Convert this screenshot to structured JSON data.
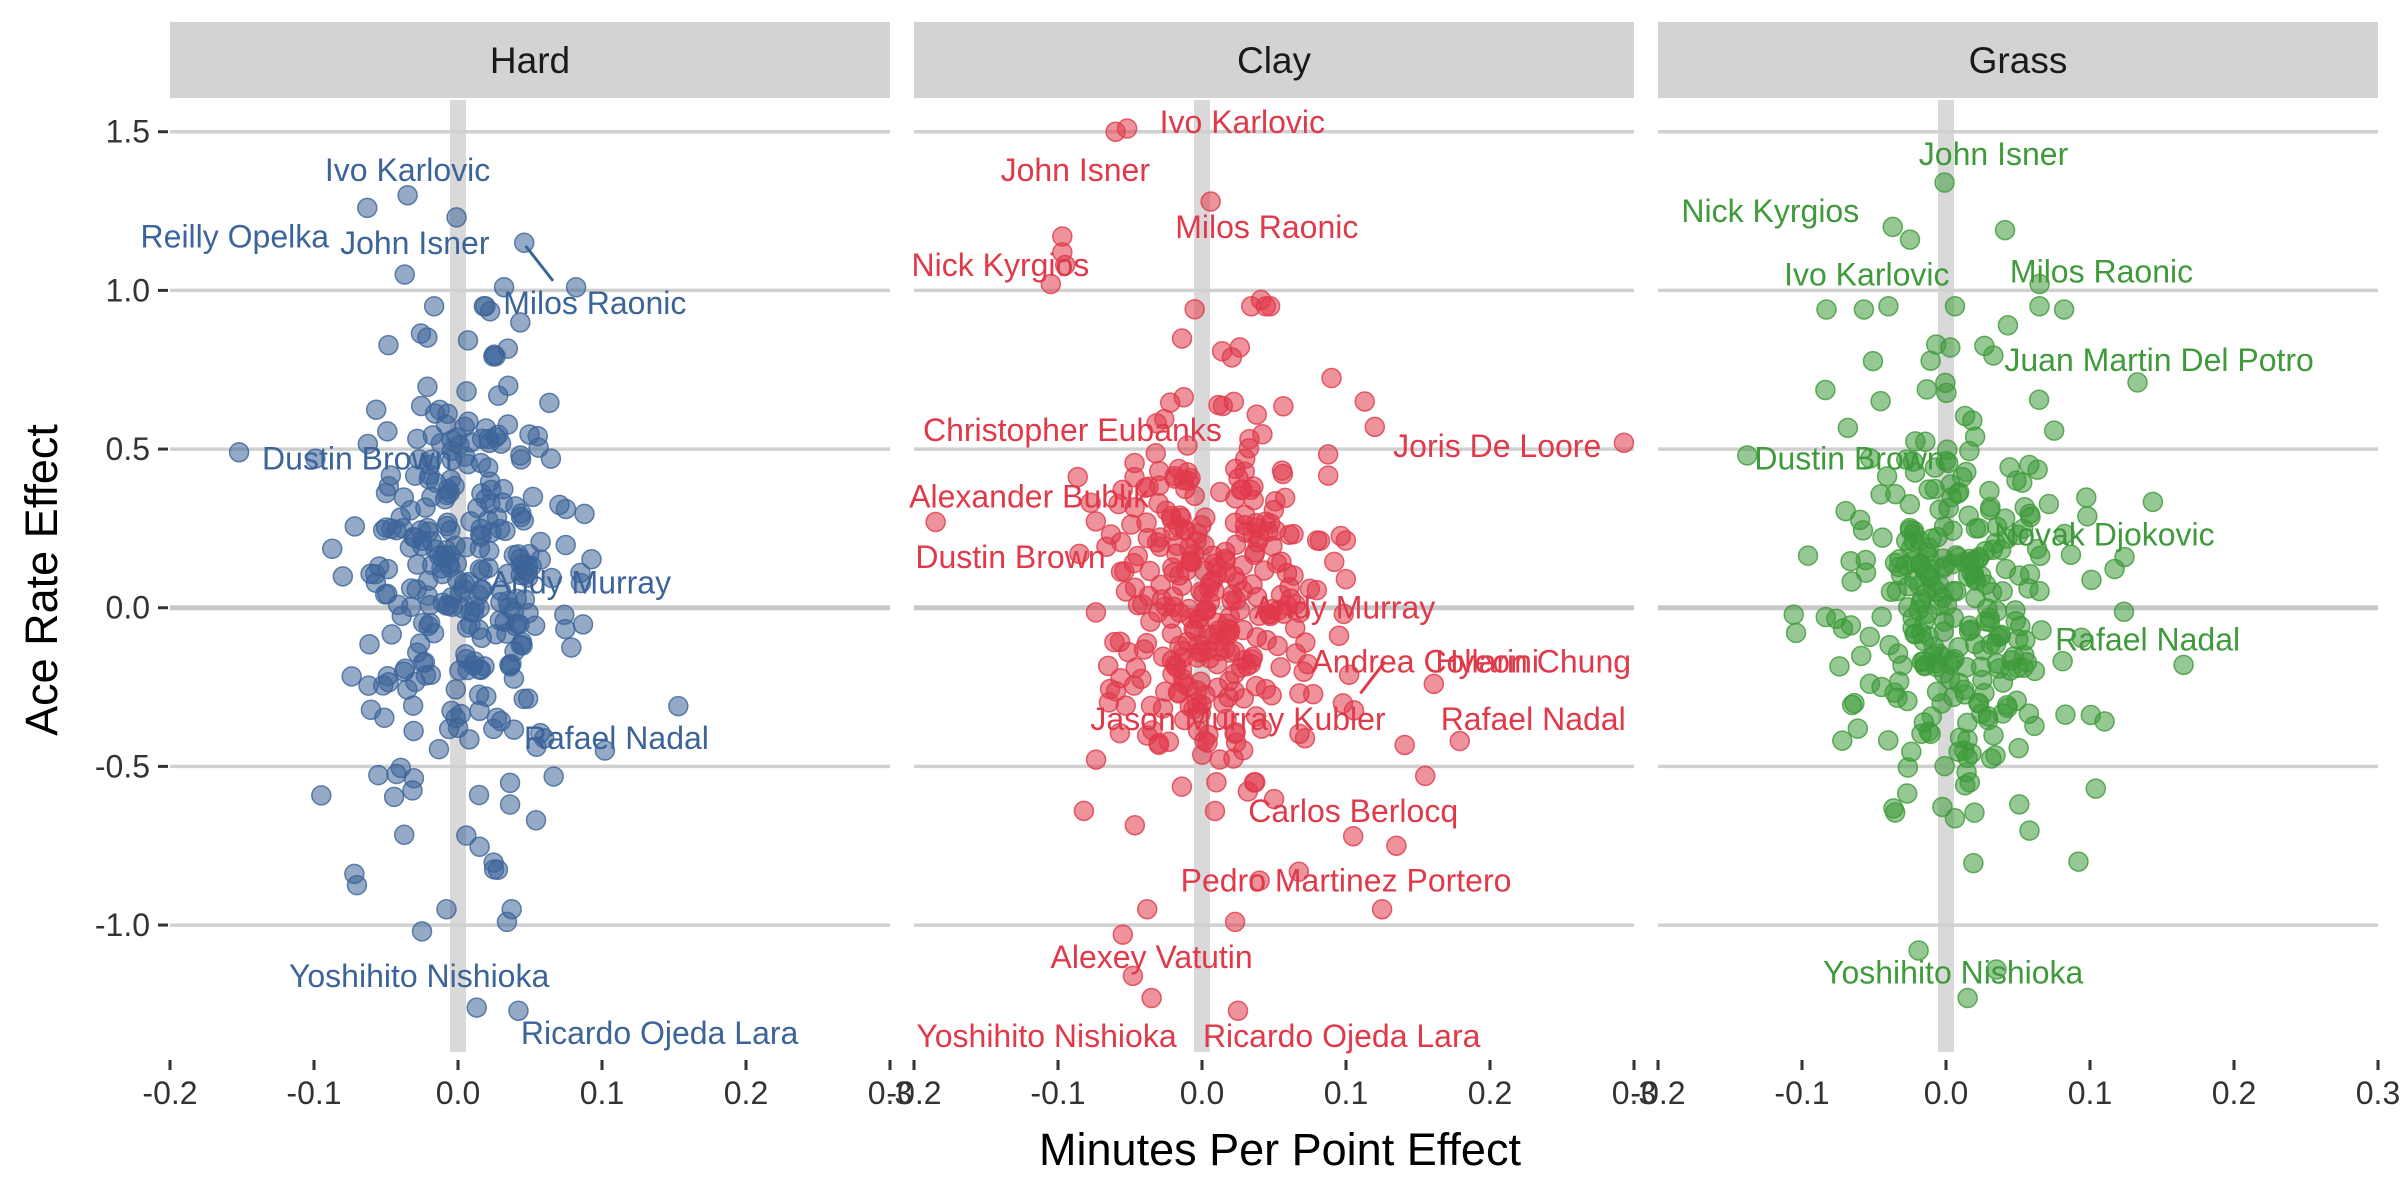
{
  "chart_data": {
    "type": "scatter",
    "xlabel": "Minutes Per Point Effect",
    "ylabel": "Ace Rate Effect",
    "xlim": [
      -0.2,
      0.3
    ],
    "ylim": [
      -1.4,
      1.6
    ],
    "x_ticks": [
      "-0.2",
      "-0.1",
      "0.0",
      "0.1",
      "0.2",
      "0.3"
    ],
    "y_ticks": [
      "1.5",
      "1.0",
      "0.5",
      "0.0",
      "-0.5",
      "-1.0"
    ],
    "grid": true,
    "panels": [
      {
        "surface": "Hard",
        "color": "#3c6499",
        "point_opacity": 0.55,
        "labels": [
          {
            "text": "Ivo Karlovic",
            "x": -0.035,
            "y": 1.38
          },
          {
            "text": "Reilly Opelka",
            "x": -0.155,
            "y": 1.17
          },
          {
            "text": "John Isner",
            "x": -0.03,
            "y": 1.15
          },
          {
            "text": "Milos Raonic",
            "x": 0.095,
            "y": 0.96
          },
          {
            "text": "Dustin Brown",
            "x": -0.07,
            "y": 0.47
          },
          {
            "text": "Andy Murray",
            "x": 0.085,
            "y": 0.08
          },
          {
            "text": "Rafael Nadal",
            "x": 0.11,
            "y": -0.41
          },
          {
            "text": "Yoshihito Nishioka",
            "x": -0.027,
            "y": -1.16
          },
          {
            "text": "Ricardo Ojeda Lara",
            "x": 0.14,
            "y": -1.34
          }
        ],
        "highlight_points": [
          [
            -0.035,
            1.3
          ],
          [
            -0.063,
            1.26
          ],
          [
            -0.001,
            1.23
          ],
          [
            -0.037,
            1.05
          ],
          [
            0.046,
            1.15
          ],
          [
            0.032,
            1.01
          ],
          [
            0.082,
            1.01
          ],
          [
            -0.152,
            0.49
          ],
          [
            -0.099,
            0.47
          ],
          [
            0.085,
            0.11
          ],
          [
            0.102,
            -0.45
          ],
          [
            0.153,
            -0.31
          ],
          [
            0.013,
            -1.26
          ],
          [
            0.042,
            -1.27
          ],
          [
            -0.025,
            -1.02
          ],
          [
            0.034,
            -0.99
          ],
          [
            -0.008,
            -0.95
          ]
        ],
        "leaders": [
          [
            0.047,
            1.14,
            0.066,
            1.03
          ]
        ]
      },
      {
        "surface": "Clay",
        "color": "#e0394a",
        "point_opacity": 0.55,
        "labels": [
          {
            "text": "Ivo Karlovic",
            "x": 0.028,
            "y": 1.53
          },
          {
            "text": "John Isner",
            "x": -0.088,
            "y": 1.38
          },
          {
            "text": "Milos Raonic",
            "x": 0.045,
            "y": 1.2
          },
          {
            "text": "Nick Kyrgios",
            "x": -0.14,
            "y": 1.08
          },
          {
            "text": "Christopher Eubanks",
            "x": -0.09,
            "y": 0.56
          },
          {
            "text": "Joris De Loore",
            "x": 0.205,
            "y": 0.51
          },
          {
            "text": "Alexander Bublik",
            "x": -0.12,
            "y": 0.35
          },
          {
            "text": "Dustin Brown",
            "x": -0.133,
            "y": 0.16
          },
          {
            "text": "Andy Murray",
            "x": 0.099,
            "y": 0.0
          },
          {
            "text": "Andrea Collarini",
            "x": 0.155,
            "y": -0.17
          },
          {
            "text": "Hyeon Chung",
            "x": 0.23,
            "y": -0.17
          },
          {
            "text": "Jason Murray Kubler",
            "x": 0.025,
            "y": -0.35
          },
          {
            "text": "Rafael Nadal",
            "x": 0.23,
            "y": -0.35
          },
          {
            "text": "Carlos Berlocq",
            "x": 0.105,
            "y": -0.64
          },
          {
            "text": "Pedro Martinez Portero",
            "x": 0.1,
            "y": -0.86
          },
          {
            "text": "Alexey Vatutin",
            "x": -0.035,
            "y": -1.1
          },
          {
            "text": "Yoshihito Nishioka",
            "x": -0.108,
            "y": -1.35
          },
          {
            "text": "Ricardo Ojeda Lara",
            "x": 0.097,
            "y": -1.35
          }
        ],
        "highlight_points": [
          [
            -0.06,
            1.5
          ],
          [
            -0.052,
            1.51
          ],
          [
            0.006,
            1.28
          ],
          [
            -0.097,
            1.17
          ],
          [
            -0.097,
            1.12
          ],
          [
            -0.095,
            1.08
          ],
          [
            -0.105,
            1.02
          ],
          [
            0.041,
            0.97
          ],
          [
            0.113,
            0.65
          ],
          [
            0.12,
            0.57
          ],
          [
            0.293,
            0.52
          ],
          [
            -0.185,
            0.27
          ],
          [
            0.161,
            -0.24
          ],
          [
            0.179,
            -0.42
          ],
          [
            0.155,
            -0.53
          ],
          [
            0.135,
            -0.75
          ],
          [
            0.105,
            -0.72
          ],
          [
            0.023,
            -0.99
          ],
          [
            -0.055,
            -1.03
          ],
          [
            -0.048,
            -1.16
          ],
          [
            -0.035,
            -1.23
          ],
          [
            0.025,
            -1.27
          ],
          [
            -0.082,
            -0.64
          ],
          [
            0.037,
            -0.55
          ],
          [
            0.04,
            -0.86
          ]
        ],
        "leaders": [
          [
            0.127,
            -0.17,
            0.11,
            -0.27
          ]
        ]
      },
      {
        "surface": "Grass",
        "color": "#3e9a3a",
        "point_opacity": 0.55,
        "labels": [
          {
            "text": "John Isner",
            "x": 0.033,
            "y": 1.43
          },
          {
            "text": "Nick Kyrgios",
            "x": -0.122,
            "y": 1.25
          },
          {
            "text": "Milos Raonic",
            "x": 0.108,
            "y": 1.06
          },
          {
            "text": "Ivo Karlovic",
            "x": -0.055,
            "y": 1.05
          },
          {
            "text": "Juan Martin Del Potro",
            "x": 0.148,
            "y": 0.78
          },
          {
            "text": "Dustin Brown",
            "x": -0.067,
            "y": 0.47
          },
          {
            "text": "Novak Djokovic",
            "x": 0.11,
            "y": 0.23
          },
          {
            "text": "Rafael Nadal",
            "x": 0.14,
            "y": -0.1
          },
          {
            "text": "Yoshihito Nishioka",
            "x": 0.005,
            "y": -1.15
          }
        ],
        "highlight_points": [
          [
            -0.001,
            1.34
          ],
          [
            -0.037,
            1.2
          ],
          [
            -0.025,
            1.16
          ],
          [
            0.041,
            1.19
          ],
          [
            -0.057,
            0.94
          ],
          [
            -0.083,
            0.94
          ],
          [
            -0.04,
            0.95
          ],
          [
            0.065,
            1.02
          ],
          [
            0.082,
            0.94
          ],
          [
            0.043,
            0.89
          ],
          [
            0.133,
            0.71
          ],
          [
            0.003,
            0.82
          ],
          [
            -0.138,
            0.48
          ],
          [
            0.124,
            0.16
          ],
          [
            0.165,
            -0.18
          ],
          [
            -0.019,
            -1.08
          ],
          [
            0.035,
            -1.14
          ],
          [
            0.015,
            -1.23
          ],
          [
            0.092,
            -0.8
          ],
          [
            0.104,
            -0.57
          ]
        ],
        "leaders": []
      }
    ]
  }
}
